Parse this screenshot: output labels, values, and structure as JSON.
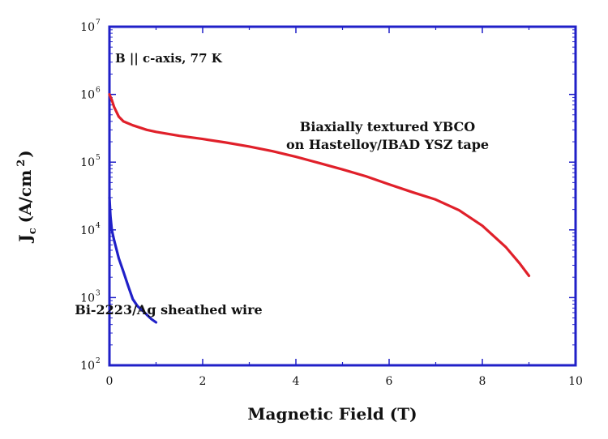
{
  "chart_data": {
    "type": "line",
    "xlabel": "Magnetic Field (T)",
    "ylabel": {
      "main": "J",
      "sub": "c",
      "units_open": "(A/cm",
      "units_sup": "2",
      "units_close": ")"
    },
    "xlim": [
      0,
      10
    ],
    "ylim": [
      100,
      10000000
    ],
    "yscale": "log",
    "grid": false,
    "x_ticks": [
      "0",
      "2",
      "4",
      "6",
      "8",
      "10"
    ],
    "y_ticks": [
      {
        "value": 100,
        "base": "10",
        "exp": "2"
      },
      {
        "value": 1000,
        "base": "10",
        "exp": "3"
      },
      {
        "value": 10000,
        "base": "10",
        "exp": "4"
      },
      {
        "value": 100000,
        "base": "10",
        "exp": "5"
      },
      {
        "value": 1000000,
        "base": "10",
        "exp": "6"
      },
      {
        "value": 10000000,
        "base": "10",
        "exp": "7"
      }
    ],
    "condition_label": "B || c-axis, 77 K",
    "series": [
      {
        "name": "Biaxially textured YBCO on Hastelloy/IBAD YSZ tape",
        "label_lines": [
          "Biaxially textured YBCO",
          "on Hastelloy/IBAD YSZ tape"
        ],
        "color": "#e0202a",
        "x": [
          0,
          0.05,
          0.1,
          0.2,
          0.3,
          0.5,
          0.8,
          1.0,
          1.5,
          2.0,
          2.5,
          3.0,
          3.5,
          4.0,
          4.5,
          5.0,
          5.5,
          6.0,
          6.5,
          7.0,
          7.5,
          8.0,
          8.5,
          8.8,
          9.0
        ],
        "y": [
          1000000,
          830000,
          650000,
          470000,
          400000,
          350000,
          300000,
          280000,
          245000,
          220000,
          195000,
          170000,
          145000,
          120000,
          97000,
          78000,
          62000,
          47000,
          36000,
          28000,
          19500,
          11500,
          5600,
          3200,
          2100
        ]
      },
      {
        "name": "Bi-2223/Ag sheathed wire",
        "label_lines": [
          "Bi-2223/Ag sheathed wire"
        ],
        "color": "#2020c8",
        "x": [
          0,
          0.02,
          0.05,
          0.1,
          0.15,
          0.2,
          0.3,
          0.4,
          0.5,
          0.6,
          0.7,
          0.8,
          0.9,
          1.0
        ],
        "y": [
          30000,
          16000,
          10000,
          7000,
          5200,
          3800,
          2400,
          1500,
          950,
          750,
          650,
          560,
          480,
          430
        ]
      }
    ]
  }
}
